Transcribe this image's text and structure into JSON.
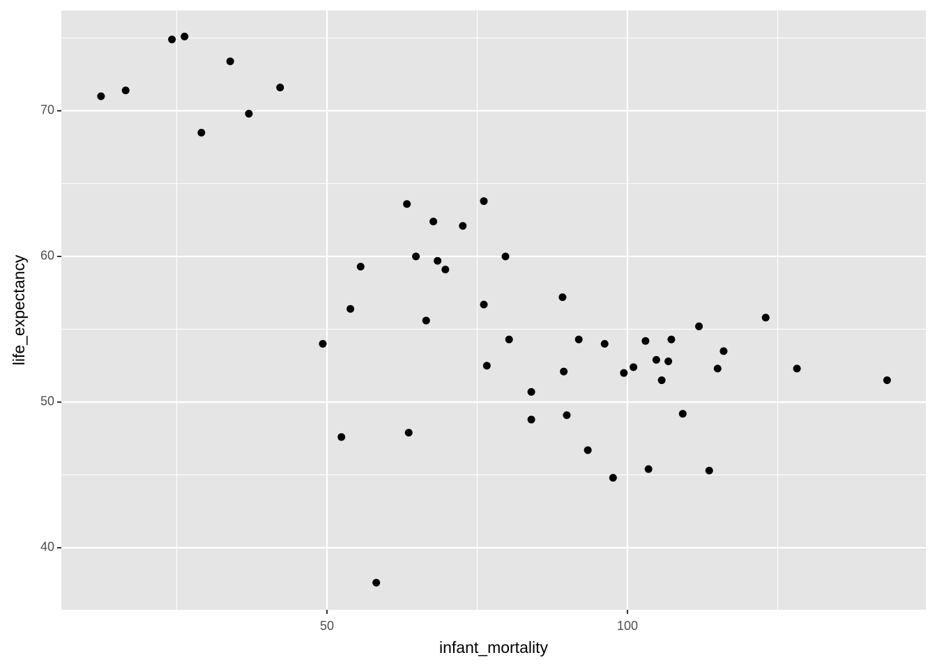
{
  "chart_data": {
    "type": "scatter",
    "x_label": "infant_mortality",
    "y_label": "life_expectancy",
    "xlim": [
      5.8,
      149.65
    ],
    "ylim": [
      35.74,
      76.89
    ],
    "xticks": [
      50,
      100
    ],
    "yticks": [
      40,
      50,
      60,
      70
    ],
    "x_minor_grid": [
      25,
      75,
      125
    ],
    "y_minor_grid": [
      45,
      55,
      65,
      75
    ],
    "grid": true,
    "panel_color": "#e5e5e5",
    "grid_color": "#ffffff",
    "color": "#000000",
    "x": [
      12.4,
      16.5,
      24.2,
      26.3,
      29.1,
      33.9,
      37.0,
      42.2,
      49.3,
      52.4,
      53.9,
      55.6,
      58.2,
      63.3,
      63.6,
      64.8,
      66.5,
      67.7,
      68.4,
      69.7,
      72.6,
      76.1,
      76.1,
      76.6,
      79.7,
      80.3,
      84.0,
      84.0,
      89.2,
      89.4,
      89.9,
      91.9,
      93.4,
      96.2,
      97.6,
      99.4,
      101.0,
      103.0,
      103.5,
      104.8,
      105.7,
      106.8,
      107.3,
      109.2,
      111.9,
      113.6,
      115.0,
      116.0,
      123.0,
      128.2,
      143.2
    ],
    "values": [
      71.0,
      71.4,
      74.9,
      75.1,
      68.5,
      73.4,
      69.8,
      71.6,
      54.0,
      47.6,
      56.4,
      59.3,
      37.6,
      63.6,
      47.9,
      60.0,
      55.6,
      62.4,
      59.7,
      59.1,
      62.1,
      63.8,
      56.7,
      52.5,
      60.0,
      54.3,
      50.7,
      48.8,
      57.2,
      52.1,
      49.1,
      54.3,
      46.7,
      54.0,
      44.8,
      52.0,
      52.4,
      54.2,
      45.4,
      52.9,
      51.5,
      52.8,
      54.3,
      49.2,
      55.2,
      45.3,
      52.3,
      53.5,
      55.8,
      52.3,
      51.5
    ]
  }
}
